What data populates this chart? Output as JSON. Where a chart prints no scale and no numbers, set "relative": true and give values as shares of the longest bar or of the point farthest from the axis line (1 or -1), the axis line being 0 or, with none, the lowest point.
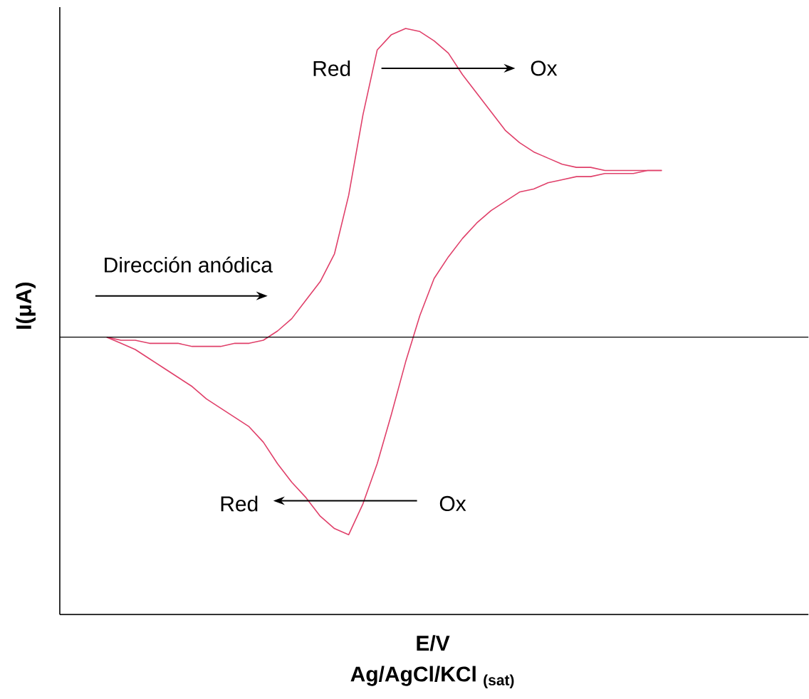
{
  "chart_data": {
    "type": "line",
    "relative": true,
    "xlabel": "E/V",
    "ylabel": "I(μA)",
    "categories": [
      null,
      null,
      null,
      null,
      null,
      null,
      null,
      null,
      null,
      null,
      null,
      null,
      null,
      null,
      null,
      null,
      null,
      null,
      null,
      null,
      null,
      null,
      null,
      null,
      null,
      null,
      null,
      null,
      null,
      null,
      null,
      null,
      null,
      null,
      null,
      null,
      null,
      null,
      null,
      null
    ],
    "series": [
      {
        "color": "#e0406a",
        "values": [
          0,
          -0.01,
          -0.01,
          -0.02,
          -0.02,
          -0.02,
          -0.03,
          -0.03,
          -0.03,
          -0.02,
          -0.02,
          -0.01,
          0.02,
          0.06,
          0.12,
          0.18,
          0.27,
          0.46,
          0.72,
          0.93,
          0.98,
          1,
          0.99,
          0.96,
          0.92,
          0.85,
          0.79,
          0.73,
          0.67,
          0.63,
          0.6,
          0.58,
          0.56,
          0.55,
          0.55,
          0.54,
          0.54,
          0.54,
          0.54,
          0.54
        ]
      },
      {
        "color": "#e0406a",
        "values": [
          0,
          -0.02,
          -0.04,
          -0.07,
          -0.1,
          -0.13,
          -0.16,
          -0.2,
          -0.23,
          -0.26,
          -0.29,
          -0.34,
          -0.41,
          -0.47,
          -0.52,
          -0.58,
          -0.62,
          -0.64,
          -0.54,
          -0.41,
          -0.25,
          -0.08,
          0.07,
          0.19,
          0.26,
          0.32,
          0.37,
          0.41,
          0.44,
          0.47,
          0.48,
          0.5,
          0.51,
          0.52,
          0.52,
          0.53,
          0.53,
          0.53,
          0.54,
          0.54
        ]
      }
    ],
    "ref_lines": [
      {
        "axis": "y",
        "value": 0,
        "color": "#000000"
      }
    ],
    "annotations": [
      "Red",
      "Ox",
      "Dirección anódica",
      "Red",
      "Ox",
      "Ag/AgCl/KCl $_{(sat)}$"
    ]
  }
}
